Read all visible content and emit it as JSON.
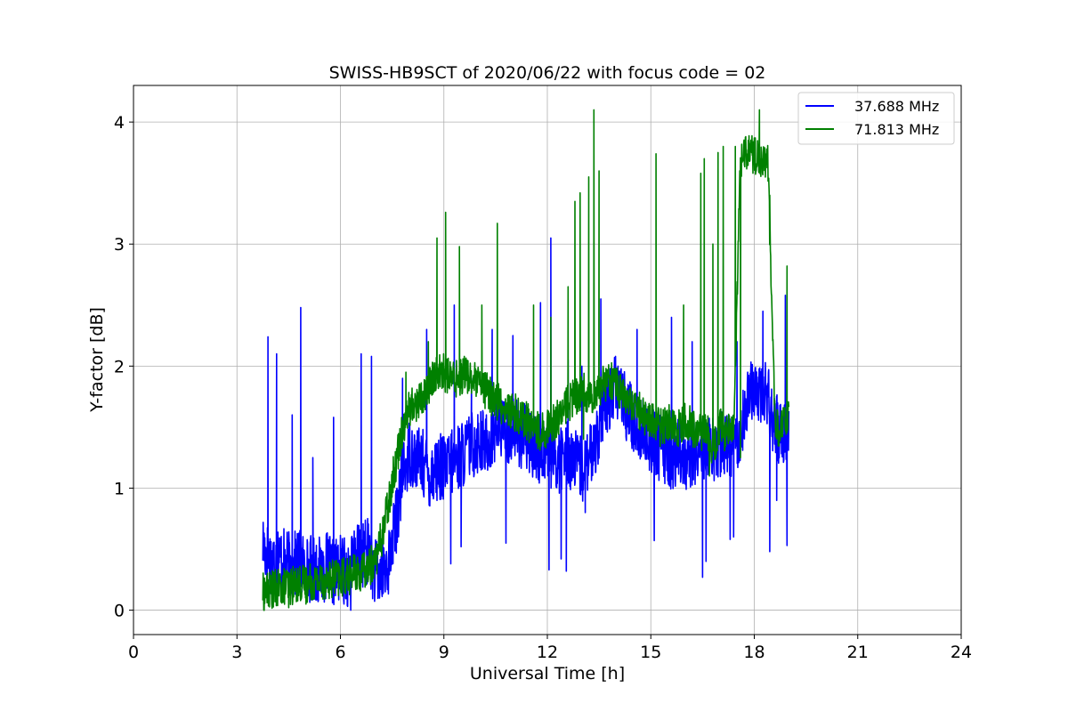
{
  "chart_data": {
    "type": "line",
    "title": "SWISS-HB9SCT of 2020/06/22 with focus code = 02",
    "xlabel": "Universal Time [h]",
    "ylabel": "Y-factor [dB]",
    "xlim": [
      0,
      24
    ],
    "ylim": [
      -0.2,
      4.3
    ],
    "xticks": [
      0,
      3,
      6,
      9,
      12,
      15,
      18,
      21,
      24
    ],
    "xtick_labels": [
      "0",
      "3",
      "6",
      "9",
      "12",
      "15",
      "18",
      "21",
      "24"
    ],
    "yticks": [
      0,
      1,
      2,
      3,
      4
    ],
    "ytick_labels": [
      "0",
      "1",
      "2",
      "3",
      "4"
    ],
    "grid": true,
    "legend_position": "top-right",
    "series": [
      {
        "name": "37.688 MHz",
        "color": "#0000ff",
        "x": [
          3.75,
          3.8,
          3.9,
          4.0,
          4.2,
          4.4,
          4.6,
          4.8,
          5.0,
          5.2,
          5.4,
          5.6,
          5.8,
          6.0,
          6.2,
          6.4,
          6.6,
          6.8,
          7.0,
          7.2,
          7.4,
          7.6,
          7.8,
          8.0,
          8.2,
          8.4,
          8.6,
          8.8,
          9.0,
          9.2,
          9.4,
          9.6,
          9.8,
          10.0,
          10.2,
          10.4,
          10.6,
          10.8,
          11.0,
          11.2,
          11.4,
          11.6,
          11.8,
          12.0,
          12.2,
          12.4,
          12.6,
          12.8,
          13.0,
          13.2,
          13.4,
          13.6,
          13.8,
          14.0,
          14.2,
          14.4,
          14.6,
          14.8,
          15.0,
          15.2,
          15.4,
          15.6,
          15.8,
          16.0,
          16.2,
          16.4,
          16.6,
          16.8,
          17.0,
          17.2,
          17.4,
          17.6,
          17.8,
          18.0,
          18.2,
          18.4,
          18.6,
          18.8,
          19.0
        ],
        "values": [
          0.55,
          0.5,
          0.45,
          0.4,
          0.45,
          0.38,
          0.35,
          0.4,
          0.33,
          0.35,
          0.32,
          0.36,
          0.3,
          0.35,
          0.3,
          0.4,
          0.45,
          0.5,
          0.3,
          0.3,
          0.4,
          0.7,
          1.1,
          1.3,
          1.25,
          1.2,
          1.1,
          1.2,
          1.15,
          1.2,
          1.25,
          1.3,
          1.35,
          1.4,
          1.35,
          1.45,
          1.5,
          1.45,
          1.5,
          1.45,
          1.4,
          1.35,
          1.3,
          1.35,
          1.2,
          1.25,
          1.3,
          1.2,
          1.15,
          1.2,
          1.4,
          1.6,
          1.75,
          1.85,
          1.7,
          1.6,
          1.5,
          1.45,
          1.4,
          1.35,
          1.3,
          1.25,
          1.3,
          1.25,
          1.3,
          1.3,
          1.35,
          1.3,
          1.35,
          1.4,
          1.35,
          1.5,
          1.7,
          1.85,
          1.8,
          1.75,
          1.5,
          1.45,
          1.55
        ],
        "spikes": [
          [
            3.9,
            2.24
          ],
          [
            4.15,
            2.1
          ],
          [
            4.6,
            1.6
          ],
          [
            4.85,
            2.48
          ],
          [
            5.2,
            1.25
          ],
          [
            5.8,
            1.58
          ],
          [
            6.6,
            2.1
          ],
          [
            6.9,
            2.08
          ],
          [
            7.8,
            1.9
          ],
          [
            8.5,
            2.3
          ],
          [
            9.3,
            2.5
          ],
          [
            9.8,
            1.9
          ],
          [
            10.4,
            2.3
          ],
          [
            11.0,
            2.25
          ],
          [
            11.8,
            2.52
          ],
          [
            12.1,
            3.05
          ],
          [
            12.6,
            2.05
          ],
          [
            13.0,
            2.0
          ],
          [
            13.55,
            2.55
          ],
          [
            14.05,
            2.0
          ],
          [
            14.6,
            2.3
          ],
          [
            15.6,
            2.4
          ],
          [
            16.2,
            2.2
          ],
          [
            17.5,
            2.2
          ],
          [
            18.25,
            2.45
          ],
          [
            18.9,
            2.58
          ]
        ],
        "dips": [
          [
            6.3,
            0.0
          ],
          [
            7.3,
            0.15
          ],
          [
            8.8,
            0.9
          ],
          [
            9.2,
            0.38
          ],
          [
            9.5,
            0.52
          ],
          [
            10.8,
            0.55
          ],
          [
            12.05,
            0.33
          ],
          [
            12.4,
            0.42
          ],
          [
            12.55,
            0.32
          ],
          [
            13.1,
            0.8
          ],
          [
            15.1,
            0.57
          ],
          [
            16.5,
            0.27
          ],
          [
            16.6,
            0.4
          ],
          [
            17.3,
            0.58
          ],
          [
            17.4,
            0.6
          ],
          [
            18.45,
            0.48
          ],
          [
            18.65,
            0.9
          ],
          [
            18.95,
            0.53
          ]
        ]
      },
      {
        "name": "71.813 MHz",
        "color": "#008000",
        "x": [
          3.75,
          3.8,
          4.0,
          4.2,
          4.4,
          4.6,
          4.8,
          5.0,
          5.2,
          5.4,
          5.6,
          5.8,
          6.0,
          6.2,
          6.4,
          6.6,
          6.8,
          7.0,
          7.2,
          7.4,
          7.6,
          7.8,
          8.0,
          8.2,
          8.4,
          8.6,
          8.8,
          9.0,
          9.2,
          9.4,
          9.6,
          9.8,
          10.0,
          10.2,
          10.4,
          10.6,
          10.8,
          11.0,
          11.2,
          11.4,
          11.6,
          11.8,
          12.0,
          12.2,
          12.4,
          12.6,
          12.8,
          13.0,
          13.2,
          13.4,
          13.6,
          13.8,
          14.0,
          14.2,
          14.4,
          14.6,
          14.8,
          15.0,
          15.2,
          15.4,
          15.6,
          15.8,
          16.0,
          16.2,
          16.4,
          16.6,
          16.8,
          17.0,
          17.2,
          17.4,
          17.6,
          17.8,
          18.0,
          18.2,
          18.4,
          18.6,
          18.8,
          19.0
        ],
        "values": [
          0.15,
          0.15,
          0.17,
          0.18,
          0.2,
          0.2,
          0.22,
          0.22,
          0.24,
          0.24,
          0.25,
          0.26,
          0.26,
          0.28,
          0.3,
          0.3,
          0.35,
          0.4,
          0.6,
          0.9,
          1.2,
          1.5,
          1.65,
          1.7,
          1.75,
          1.85,
          1.95,
          1.95,
          1.9,
          1.9,
          1.95,
          1.9,
          1.85,
          1.8,
          1.75,
          1.7,
          1.65,
          1.62,
          1.6,
          1.55,
          1.5,
          1.45,
          1.5,
          1.55,
          1.6,
          1.7,
          1.75,
          1.8,
          1.75,
          1.8,
          1.85,
          1.9,
          1.85,
          1.75,
          1.7,
          1.65,
          1.6,
          1.55,
          1.5,
          1.5,
          1.55,
          1.5,
          1.55,
          1.5,
          1.45,
          1.5,
          1.3,
          1.5,
          1.45,
          1.45,
          3.7,
          3.75,
          3.72,
          3.7,
          3.65,
          1.5,
          1.5,
          1.55
        ],
        "spikes": [
          [
            7.9,
            1.95
          ],
          [
            8.55,
            2.2
          ],
          [
            8.8,
            3.05
          ],
          [
            9.05,
            3.26
          ],
          [
            9.45,
            2.98
          ],
          [
            10.1,
            2.5
          ],
          [
            10.55,
            3.17
          ],
          [
            11.6,
            2.5
          ],
          [
            12.1,
            2.4
          ],
          [
            12.6,
            2.65
          ],
          [
            12.8,
            3.35
          ],
          [
            12.95,
            3.42
          ],
          [
            13.2,
            3.55
          ],
          [
            13.35,
            4.1
          ],
          [
            13.5,
            3.6
          ],
          [
            15.15,
            3.74
          ],
          [
            15.95,
            2.5
          ],
          [
            16.45,
            3.58
          ],
          [
            16.55,
            3.7
          ],
          [
            16.8,
            3.0
          ],
          [
            16.95,
            3.75
          ],
          [
            17.1,
            3.8
          ],
          [
            17.45,
            3.8
          ],
          [
            18.15,
            4.1
          ],
          [
            18.45,
            3.4
          ],
          [
            18.95,
            2.82
          ]
        ],
        "dips": [
          [
            4.5,
            0.02
          ],
          [
            5.0,
            0.05
          ],
          [
            13.05,
            1.4
          ],
          [
            16.7,
            1.1
          ],
          [
            17.6,
            1.25
          ]
        ]
      }
    ]
  }
}
